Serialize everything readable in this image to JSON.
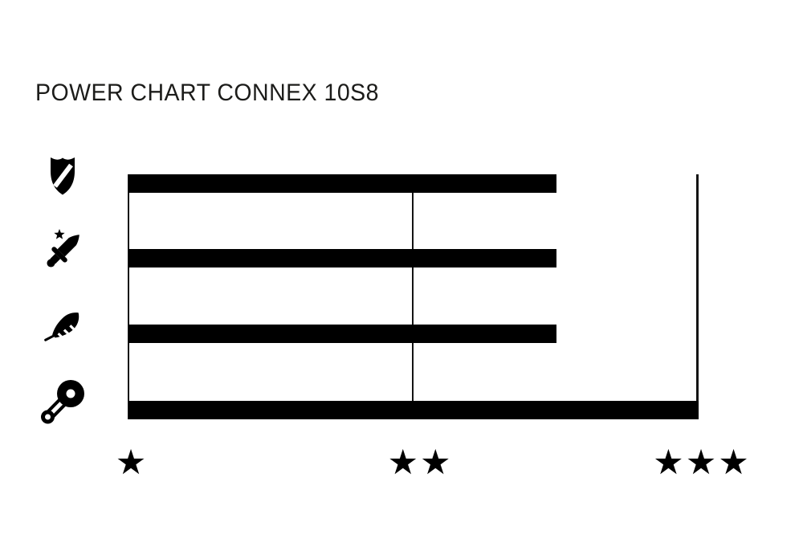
{
  "title": "POWER CHART CONNEX 10S8",
  "chart_data": {
    "type": "bar",
    "orientation": "horizontal",
    "title": "POWER CHART CONNEX 10S8",
    "categories": [
      "shield",
      "dagger",
      "feather",
      "crank-pulley"
    ],
    "rows": [
      {
        "icon": "shield",
        "stars": 2.5
      },
      {
        "icon": "dagger",
        "stars": 2.5
      },
      {
        "icon": "feather",
        "stars": 2.5
      },
      {
        "icon": "crank-pulley",
        "stars": 3
      }
    ],
    "x_axis": {
      "unit": "stars",
      "min": 1,
      "max": 3,
      "ticks": [
        1,
        2,
        3
      ],
      "tick_glyphs": [
        "★",
        "★★",
        "★★★"
      ]
    },
    "legend": "none",
    "gridlines": "vertical lines at 1, 2 and 3 stars",
    "colors": {
      "bar": "#000000",
      "gridline": "#141414",
      "title": "#1c1c1a",
      "background": "#ffffff"
    }
  }
}
